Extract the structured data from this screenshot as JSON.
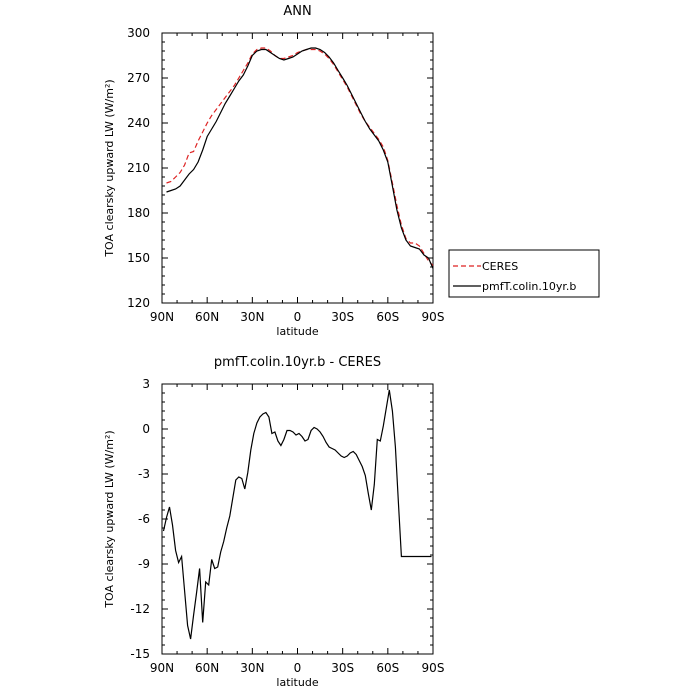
{
  "chart_data": [
    {
      "type": "line",
      "title": "ANN",
      "xlabel": "latitude",
      "ylabel": "TOA clearsky upward LW (W/m²)",
      "x_ticklabels": [
        "90N",
        "60N",
        "30N",
        "0",
        "30S",
        "60S",
        "90S"
      ],
      "xlim": [
        90,
        -90
      ],
      "ylim": [
        120,
        300
      ],
      "y_ticklabels": [
        "120",
        "150",
        "180",
        "210",
        "240",
        "270",
        "300"
      ],
      "legend_position": "right",
      "series": [
        {
          "name": "CERES",
          "color": "#dd2222",
          "dash": "dashed",
          "x": [
            87,
            84,
            81,
            78,
            75,
            72,
            69,
            66,
            63,
            60,
            57,
            54,
            51,
            48,
            45,
            42,
            39,
            36,
            33,
            30,
            27,
            24,
            21,
            18,
            15,
            12,
            9,
            6,
            3,
            0,
            -3,
            -6,
            -9,
            -12,
            -15,
            -18,
            -21,
            -24,
            -27,
            -30,
            -33,
            -36,
            -39,
            -42,
            -45,
            -48,
            -51,
            -54,
            -57,
            -60,
            -63,
            -66,
            -69,
            -72,
            -75,
            -78,
            -81,
            -84,
            -87,
            -90
          ],
          "y": [
            200,
            201,
            204,
            207,
            212,
            220,
            221,
            228,
            234,
            240,
            245,
            249,
            253,
            257,
            261,
            265,
            270,
            275,
            280,
            286,
            289,
            290,
            290,
            288,
            285,
            283,
            283,
            284,
            285,
            287,
            288,
            289,
            289,
            289,
            288,
            286,
            283,
            279,
            274,
            269,
            264,
            258,
            252,
            246,
            241,
            237,
            233,
            229,
            224,
            215,
            200,
            185,
            172,
            163,
            160,
            160,
            158,
            153,
            148,
            145
          ]
        },
        {
          "name": "pmfT.colin.10yr.b",
          "color": "#000000",
          "dash": "solid",
          "x": [
            87,
            84,
            81,
            78,
            75,
            72,
            69,
            66,
            63,
            60,
            57,
            54,
            51,
            48,
            45,
            42,
            39,
            36,
            33,
            30,
            27,
            24,
            21,
            18,
            15,
            12,
            9,
            6,
            3,
            0,
            -3,
            -6,
            -9,
            -12,
            -15,
            -18,
            -21,
            -24,
            -27,
            -30,
            -33,
            -36,
            -39,
            -42,
            -45,
            -48,
            -51,
            -54,
            -57,
            -60,
            -63,
            -66,
            -69,
            -72,
            -75,
            -78,
            -81,
            -84,
            -87,
            -90
          ],
          "y": [
            194,
            195,
            196,
            198,
            202,
            206,
            209,
            214,
            222,
            231,
            236,
            241,
            247,
            253,
            258,
            263,
            268,
            272,
            278,
            285,
            288,
            289,
            289,
            287,
            285,
            283,
            282,
            283,
            284,
            286,
            288,
            289,
            290,
            290,
            289,
            287,
            284,
            280,
            275,
            270,
            265,
            259,
            253,
            247,
            241,
            236,
            232,
            228,
            222,
            214,
            198,
            182,
            170,
            162,
            158,
            157,
            156,
            152,
            150,
            143
          ]
        }
      ]
    },
    {
      "type": "line",
      "title": "pmfT.colin.10yr.b - CERES",
      "xlabel": "latitude",
      "ylabel": "TOA clearsky upward LW (W/m²)",
      "x_ticklabels": [
        "90N",
        "60N",
        "30N",
        "0",
        "30S",
        "60S",
        "90S"
      ],
      "xlim": [
        90,
        -90
      ],
      "ylim": [
        -15,
        3
      ],
      "y_ticklabels": [
        "-15",
        "-12",
        "-9",
        "-6",
        "-3",
        "0",
        "3"
      ],
      "series": [
        {
          "name": "",
          "color": "#000000",
          "dash": "solid",
          "x": [
            89,
            87,
            85,
            83,
            81,
            79,
            77,
            75,
            73,
            71,
            69,
            67,
            65,
            63,
            61,
            59,
            57,
            55,
            53,
            51,
            49,
            47,
            45,
            43,
            41,
            39,
            37,
            35,
            33,
            31,
            29,
            27,
            25,
            23,
            21,
            19,
            17,
            15,
            13,
            11,
            9,
            7,
            5,
            3,
            1,
            -1,
            -3,
            -5,
            -7,
            -9,
            -11,
            -13,
            -15,
            -17,
            -19,
            -21,
            -23,
            -25,
            -27,
            -29,
            -31,
            -33,
            -35,
            -37,
            -39,
            -41,
            -43,
            -45,
            -47,
            -49,
            -51,
            -53,
            -55,
            -57,
            -59,
            -61,
            -63,
            -65,
            -67,
            -69,
            -71,
            -73,
            -75,
            -77,
            -79,
            -81,
            -83,
            -85,
            -87,
            -89
          ],
          "y": [
            -6.8,
            -5.9,
            -5.2,
            -6.4,
            -8.1,
            -8.9,
            -8.5,
            -10.8,
            -13.1,
            -14.0,
            -12.4,
            -10.9,
            -9.3,
            -12.9,
            -10.2,
            -10.4,
            -8.7,
            -9.3,
            -9.2,
            -8.2,
            -7.5,
            -6.6,
            -5.8,
            -4.6,
            -3.4,
            -3.2,
            -3.3,
            -4.0,
            -2.9,
            -1.4,
            -0.3,
            0.4,
            0.8,
            1.0,
            1.1,
            0.8,
            -0.3,
            -0.2,
            -0.8,
            -1.1,
            -0.7,
            -0.1,
            -0.1,
            -0.2,
            -0.4,
            -0.3,
            -0.5,
            -0.8,
            -0.7,
            -0.1,
            0.1,
            0.0,
            -0.2,
            -0.5,
            -0.9,
            -1.2,
            -1.3,
            -1.4,
            -1.6,
            -1.8,
            -1.9,
            -1.8,
            -1.6,
            -1.5,
            -1.7,
            -2.1,
            -2.5,
            -3.1,
            -4.3,
            -5.4,
            -3.7,
            -0.7,
            -0.8,
            0.2,
            1.4,
            2.6,
            1.2,
            -1.2,
            -4.9,
            -8.5,
            -8.5,
            -8.5,
            -8.5,
            -8.5,
            -8.5,
            -8.5,
            -8.5,
            -8.5,
            -8.5,
            -8.5
          ]
        }
      ]
    }
  ]
}
